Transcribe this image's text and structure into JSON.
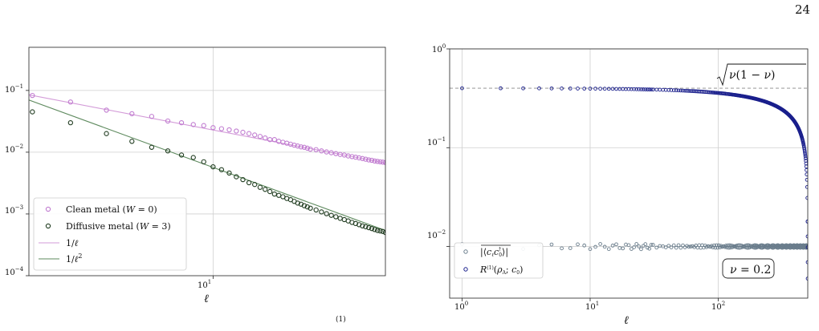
{
  "page": {
    "number": "24",
    "caption_fragment": "(1)"
  },
  "chart_data": [
    {
      "type": "scatter",
      "title": "",
      "xlabel": "ℓ",
      "ylabel": "",
      "xscale": "log",
      "yscale": "log",
      "xlim": [
        1.25,
        70
      ],
      "ylim": [
        0.0001,
        0.5
      ],
      "grid": true,
      "legend_placement": "bottom-left",
      "xtick_labels": [
        "10^1"
      ],
      "ytick_labels": [
        "10^-1",
        "10^-2",
        "10^-3",
        "10^-4"
      ],
      "legend": [
        "Clean metal (W = 0)",
        "Diffusive metal (W = 3)",
        "1/ℓ",
        "1/ℓ²"
      ],
      "colors": {
        "clean": "#c07bd0",
        "diffusive": "#1f3b1f",
        "fit_clean": "#d39bd8",
        "fit_diffusive": "#5e8a5e"
      },
      "series": [
        {
          "name": "Clean metal (W = 0)",
          "kind": "points",
          "x": [
            1.3,
            2,
            3,
            4,
            5,
            6,
            7,
            8,
            9,
            10,
            11,
            12,
            13,
            14,
            15,
            16,
            17,
            18,
            19,
            20,
            21,
            22,
            23,
            24,
            25,
            26,
            27,
            28,
            29,
            30,
            32,
            34,
            36,
            38,
            40,
            42,
            44,
            46,
            48,
            50,
            52,
            54,
            56,
            58,
            60,
            62,
            64,
            66,
            68,
            70
          ],
          "y": [
            0.083,
            0.065,
            0.048,
            0.042,
            0.038,
            0.032,
            0.03,
            0.028,
            0.027,
            0.025,
            0.024,
            0.023,
            0.022,
            0.021,
            0.02,
            0.019,
            0.018,
            0.017,
            0.016,
            0.016,
            0.015,
            0.0145,
            0.014,
            0.0135,
            0.013,
            0.0126,
            0.0122,
            0.012,
            0.0116,
            0.0112,
            0.011,
            0.0105,
            0.0101,
            0.0098,
            0.0095,
            0.0092,
            0.009,
            0.0087,
            0.0085,
            0.0083,
            0.0081,
            0.0079,
            0.0077,
            0.0075,
            0.0074,
            0.0072,
            0.0071,
            0.007,
            0.0069,
            0.0068
          ]
        },
        {
          "name": "Diffusive metal (W = 3)",
          "kind": "points",
          "x": [
            1.3,
            2,
            3,
            4,
            5,
            6,
            7,
            8,
            9,
            10,
            11,
            12,
            13,
            14,
            15,
            16,
            17,
            18,
            19,
            20,
            21,
            22,
            23,
            24,
            25,
            26,
            27,
            28,
            29,
            30,
            32,
            34,
            36,
            38,
            40,
            42,
            44,
            46,
            48,
            50,
            52,
            54,
            56,
            58,
            60,
            62,
            64,
            66,
            68,
            70
          ],
          "y": [
            0.045,
            0.03,
            0.02,
            0.015,
            0.012,
            0.0105,
            0.009,
            0.0082,
            0.007,
            0.0058,
            0.0052,
            0.0046,
            0.004,
            0.0036,
            0.0032,
            0.003,
            0.0027,
            0.0025,
            0.0023,
            0.0021,
            0.002,
            0.0019,
            0.00178,
            0.0017,
            0.0016,
            0.0015,
            0.00144,
            0.00136,
            0.0013,
            0.00124,
            0.00116,
            0.00108,
            0.00101,
            0.00095,
            0.0009,
            0.00085,
            0.00081,
            0.00077,
            0.00073,
            0.0007,
            0.00067,
            0.00064,
            0.00062,
            0.0006,
            0.00058,
            0.00056,
            0.00054,
            0.00053,
            0.00052,
            0.0005
          ]
        },
        {
          "name": "1/ℓ",
          "kind": "line",
          "x": [
            1.25,
            70
          ],
          "y": [
            0.085,
            0.0067
          ]
        },
        {
          "name": "1/ℓ²",
          "kind": "line",
          "x": [
            1.25,
            70
          ],
          "y": [
            0.07,
            0.00054
          ]
        }
      ]
    },
    {
      "type": "scatter",
      "title": "",
      "xlabel": "ℓ",
      "ylabel": "",
      "xscale": "log",
      "yscale": "log",
      "xlim": [
        0.8,
        500
      ],
      "ylim": [
        0.003,
        1
      ],
      "grid": true,
      "legend_placement": "bottom-left",
      "xtick_labels": [
        "10^0",
        "10^1",
        "10^2"
      ],
      "ytick_labels": [
        "10^0",
        "10^-1",
        "10^-2"
      ],
      "legend": [
        "|⟨c_ℓ c_0†⟩| (overlined)",
        "R^(1)(ρ_A; c_0)"
      ],
      "colors": {
        "corr": "#6a7d8c",
        "R": "#1a1f8c",
        "hline": "#888888"
      },
      "hline": {
        "y": 0.4,
        "label": "√(ν(1−ν))"
      },
      "annotation": "ν = 0.2",
      "nu": 0.2,
      "R_curve": {
        "L": 500,
        "amplitude": 0.4,
        "exponent": 0.5
      },
      "corr_level": 0.01
    }
  ]
}
